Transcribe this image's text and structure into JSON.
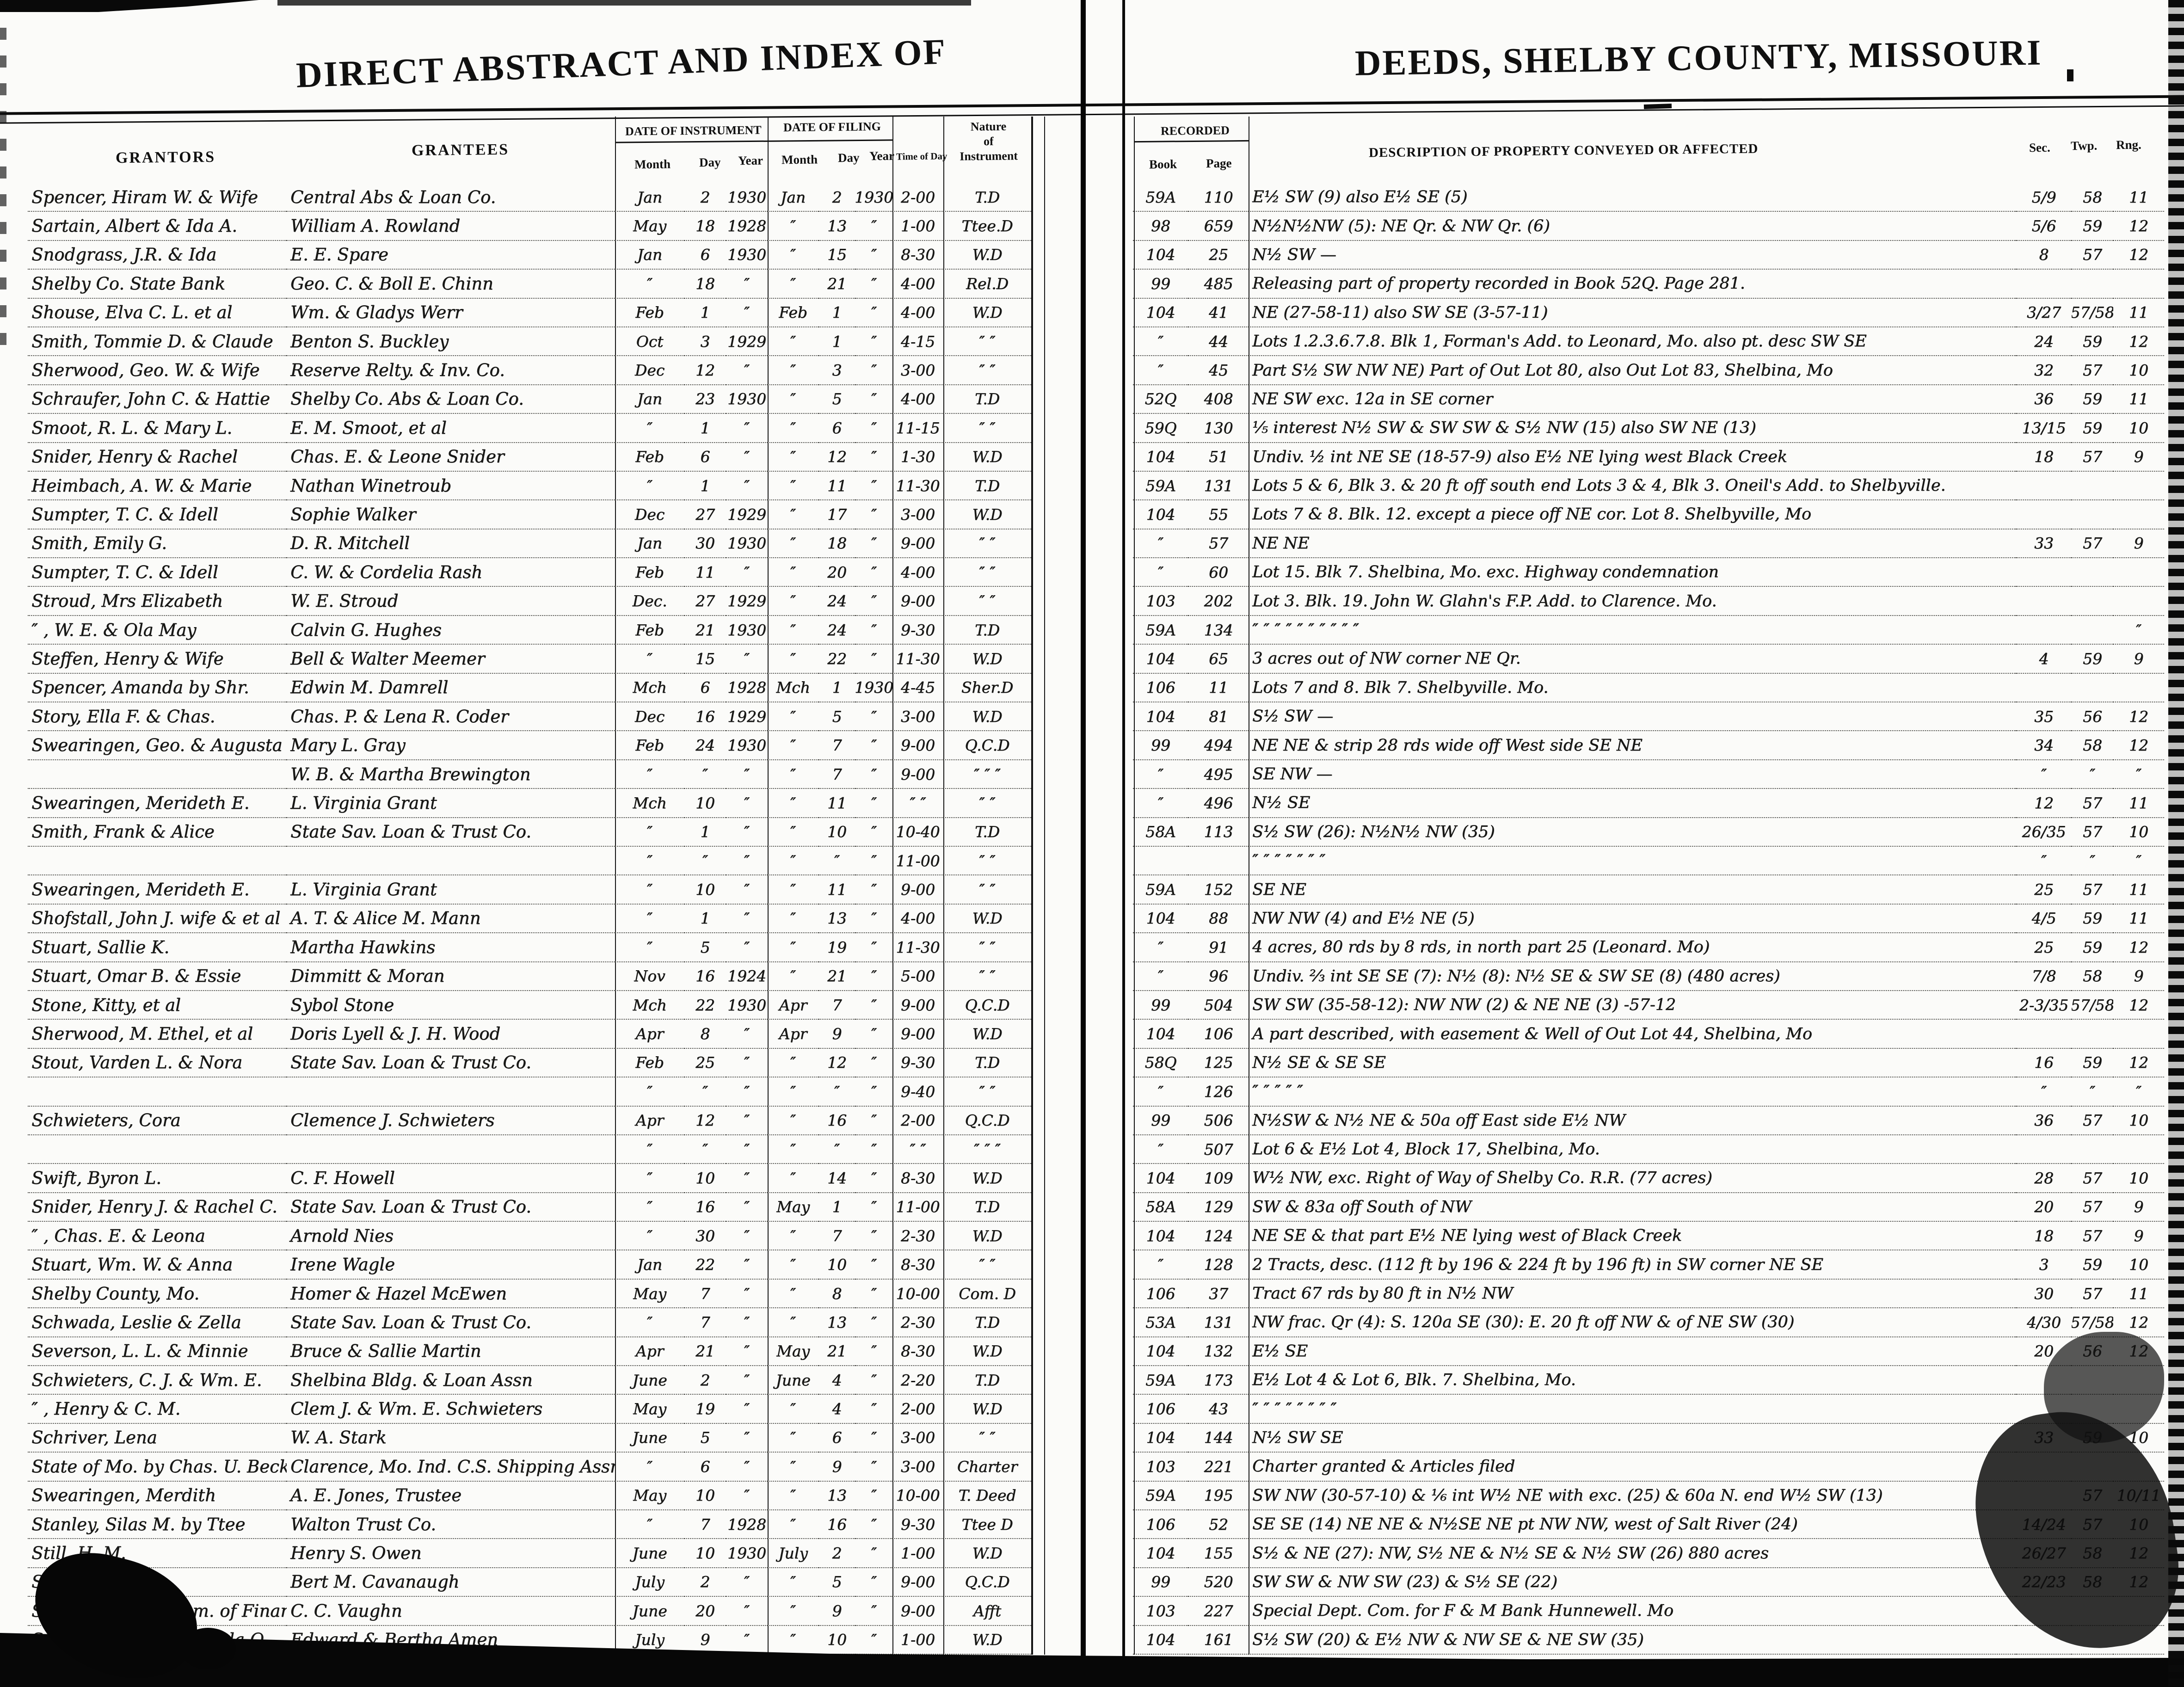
{
  "titles": {
    "left": "DIRECT ABSTRACT AND INDEX OF",
    "right": "DEEDS, SHELBY COUNTY, MISSOURI"
  },
  "headers": {
    "grantors": "GRANTORS",
    "grantees": "GRANTEES",
    "date_of_instrument": "DATE OF INSTRUMENT",
    "date_of_filing": "DATE OF FILING",
    "month": "Month",
    "day": "Day",
    "year": "Year",
    "time_of_day": "Time of Day",
    "nature_line1": "Nature",
    "nature_line2": "of",
    "nature_line3": "Instrument",
    "recorded": "RECORDED",
    "book": "Book",
    "page": "Page",
    "description": "DESCRIPTION OF PROPERTY CONVEYED OR AFFECTED",
    "sec": "Sec.",
    "twp": "Twp.",
    "rng": "Rng."
  },
  "rows": [
    {
      "g": "Spencer, Hiram W. & Wife",
      "e": "Central Abs & Loan Co.",
      "im": "Jan",
      "idy": "2",
      "iy": "1930",
      "fm": "Jan",
      "fd": "2",
      "fy": "1930",
      "t": "2-00",
      "n": "T.D",
      "bk": "59A",
      "pg": "110",
      "d": "E½ SW (9) also E½ SE (5)",
      "sec": "5/9",
      "twp": "58",
      "rng": "11"
    },
    {
      "g": "Sartain, Albert & Ida A.",
      "e": "William A. Rowland",
      "im": "May",
      "idy": "18",
      "iy": "1928",
      "fm": "″",
      "fd": "13",
      "fy": "″",
      "t": "1-00",
      "n": "Ttee.D",
      "bk": "98",
      "pg": "659",
      "d": "N½N½NW (5): NE Qr. & NW Qr. (6)",
      "sec": "5/6",
      "twp": "59",
      "rng": "12"
    },
    {
      "g": "Snodgrass, J.R. & Ida",
      "e": "E. E. Spare",
      "im": "Jan",
      "idy": "6",
      "iy": "1930",
      "fm": "″",
      "fd": "15",
      "fy": "″",
      "t": "8-30",
      "n": "W.D",
      "bk": "104",
      "pg": "25",
      "d": "N½ SW —",
      "sec": "8",
      "twp": "57",
      "rng": "12"
    },
    {
      "g": "Shelby Co. State Bank",
      "e": "Geo. C. & Boll E. Chinn",
      "im": "″",
      "idy": "18",
      "iy": "″",
      "fm": "″",
      "fd": "21",
      "fy": "″",
      "t": "4-00",
      "n": "Rel.D",
      "bk": "99",
      "pg": "485",
      "d": "Releasing part of property recorded in Book 52Q. Page 281.",
      "sec": "",
      "twp": "",
      "rng": ""
    },
    {
      "g": "Shouse, Elva C. L. et al",
      "e": "Wm. & Gladys Werr",
      "im": "Feb",
      "idy": "1",
      "iy": "″",
      "fm": "Feb",
      "fd": "1",
      "fy": "″",
      "t": "4-00",
      "n": "W.D",
      "bk": "104",
      "pg": "41",
      "d": "NE (27-58-11) also SW SE (3-57-11)",
      "sec": "3/27",
      "twp": "57/58",
      "rng": "11"
    },
    {
      "g": "Smith, Tommie D. & Claude",
      "e": "Benton S. Buckley",
      "im": "Oct",
      "idy": "3",
      "iy": "1929",
      "fm": "″",
      "fd": "1",
      "fy": "″",
      "t": "4-15",
      "n": "″ ″",
      "bk": "″",
      "pg": "44",
      "d": "Lots 1.2.3.6.7.8. Blk 1, Forman's Add. to Leonard, Mo. also pt. desc SW SE",
      "sec": "24",
      "twp": "59",
      "rng": "12"
    },
    {
      "g": "Sherwood, Geo. W. & Wife",
      "e": "Reserve Relty. & Inv. Co.",
      "im": "Dec",
      "idy": "12",
      "iy": "″",
      "fm": "″",
      "fd": "3",
      "fy": "″",
      "t": "3-00",
      "n": "″ ″",
      "bk": "″",
      "pg": "45",
      "d": "Part S½ SW NW NE) Part of Out Lot 80, also Out Lot 83, Shelbina, Mo",
      "sec": "32",
      "twp": "57",
      "rng": "10"
    },
    {
      "g": "Schraufer, John C. & Hattie",
      "e": "Shelby Co. Abs & Loan Co.",
      "im": "Jan",
      "idy": "23",
      "iy": "1930",
      "fm": "″",
      "fd": "5",
      "fy": "″",
      "t": "4-00",
      "n": "T.D",
      "bk": "52Q",
      "pg": "408",
      "d": "NE SW exc. 12a in SE corner",
      "sec": "36",
      "twp": "59",
      "rng": "11"
    },
    {
      "g": "Smoot, R. L. & Mary L.",
      "e": "E. M. Smoot, et al",
      "im": "″",
      "idy": "1",
      "iy": "″",
      "fm": "″",
      "fd": "6",
      "fy": "″",
      "t": "11-15",
      "n": "″ ″",
      "bk": "59Q",
      "pg": "130",
      "d": "⅕ interest N½ SW & SW SW & S½ NW (15) also SW NE (13)",
      "sec": "13/15",
      "twp": "59",
      "rng": "10"
    },
    {
      "g": "Snider, Henry & Rachel",
      "e": "Chas. E. & Leone Snider",
      "im": "Feb",
      "idy": "6",
      "iy": "″",
      "fm": "″",
      "fd": "12",
      "fy": "″",
      "t": "1-30",
      "n": "W.D",
      "bk": "104",
      "pg": "51",
      "d": "Undiv. ½ int NE SE (18-57-9) also E½ NE lying west Black Creek",
      "sec": "18",
      "twp": "57",
      "rng": "9"
    },
    {
      "g": "Heimbach, A. W. & Marie",
      "e": "Nathan Winetroub",
      "im": "″",
      "idy": "1",
      "iy": "″",
      "fm": "″",
      "fd": "11",
      "fy": "″",
      "t": "11-30",
      "n": "T.D",
      "bk": "59A",
      "pg": "131",
      "d": "Lots 5 & 6, Blk 3. & 20 ft off south end Lots 3 & 4, Blk 3. Oneil's Add. to Shelbyville.",
      "sec": "",
      "twp": "",
      "rng": ""
    },
    {
      "g": "Sumpter, T. C. & Idell",
      "e": "Sophie Walker",
      "im": "Dec",
      "idy": "27",
      "iy": "1929",
      "fm": "″",
      "fd": "17",
      "fy": "″",
      "t": "3-00",
      "n": "W.D",
      "bk": "104",
      "pg": "55",
      "d": "Lots 7 & 8. Blk. 12. except a piece off NE cor. Lot 8. Shelbyville, Mo",
      "sec": "",
      "twp": "",
      "rng": ""
    },
    {
      "g": "Smith, Emily G.",
      "e": "D. R. Mitchell",
      "im": "Jan",
      "idy": "30",
      "iy": "1930",
      "fm": "″",
      "fd": "18",
      "fy": "″",
      "t": "9-00",
      "n": "″ ″",
      "bk": "″",
      "pg": "57",
      "d": "NE NE",
      "sec": "33",
      "twp": "57",
      "rng": "9"
    },
    {
      "g": "Sumpter, T. C. & Idell",
      "e": "C. W. & Cordelia Rash",
      "im": "Feb",
      "idy": "11",
      "iy": "″",
      "fm": "″",
      "fd": "20",
      "fy": "″",
      "t": "4-00",
      "n": "″ ″",
      "bk": "″",
      "pg": "60",
      "d": "Lot 15. Blk 7. Shelbina, Mo. exc. Highway condemnation",
      "sec": "",
      "twp": "",
      "rng": ""
    },
    {
      "g": "Stroud, Mrs Elizabeth",
      "e": "W. E. Stroud",
      "im": "Dec.",
      "idy": "27",
      "iy": "1929",
      "fm": "″",
      "fd": "24",
      "fy": "″",
      "t": "9-00",
      "n": "″ ″",
      "bk": "103",
      "pg": "202",
      "d": "Lot 3. Blk. 19. John W. Glahn's F.P. Add. to Clarence. Mo.",
      "sec": "",
      "twp": "",
      "rng": ""
    },
    {
      "g": "″ , W. E. & Ola May",
      "e": "Calvin G. Hughes",
      "im": "Feb",
      "idy": "21",
      "iy": "1930",
      "fm": "″",
      "fd": "24",
      "fy": "″",
      "t": "9-30",
      "n": "T.D",
      "bk": "59A",
      "pg": "134",
      "d": "″   ″   ″   ″   ″   ″   ″   ″   ″   ″",
      "sec": "",
      "twp": "",
      "rng": "″"
    },
    {
      "g": "Steffen, Henry & Wife",
      "e": "Bell & Walter Meemer",
      "im": "″",
      "idy": "15",
      "iy": "″",
      "fm": "″",
      "fd": "22",
      "fy": "″",
      "t": "11-30",
      "n": "W.D",
      "bk": "104",
      "pg": "65",
      "d": "3 acres out of NW corner NE Qr.",
      "sec": "4",
      "twp": "59",
      "rng": "9"
    },
    {
      "g": "Spencer, Amanda by Shr.",
      "e": "Edwin M. Damrell",
      "im": "Mch",
      "idy": "6",
      "iy": "1928",
      "fm": "Mch",
      "fd": "1",
      "fy": "1930",
      "t": "4-45",
      "n": "Sher.D",
      "bk": "106",
      "pg": "11",
      "d": "Lots 7 and 8. Blk 7. Shelbyville. Mo.",
      "sec": "",
      "twp": "",
      "rng": ""
    },
    {
      "g": "Story, Ella F. & Chas.",
      "e": "Chas. P. & Lena R. Coder",
      "im": "Dec",
      "idy": "16",
      "iy": "1929",
      "fm": "″",
      "fd": "5",
      "fy": "″",
      "t": "3-00",
      "n": "W.D",
      "bk": "104",
      "pg": "81",
      "d": "S½ SW —",
      "sec": "35",
      "twp": "56",
      "rng": "12"
    },
    {
      "g": "Swearingen, Geo. & Augusta",
      "e": "Mary L. Gray",
      "im": "Feb",
      "idy": "24",
      "iy": "1930",
      "fm": "″",
      "fd": "7",
      "fy": "″",
      "t": "9-00",
      "n": "Q.C.D",
      "bk": "99",
      "pg": "494",
      "d": "NE NE & strip 28 rds wide off West side SE NE",
      "sec": "34",
      "twp": "58",
      "rng": "12"
    },
    {
      "g": "",
      "e": "W. B. & Martha Brewington",
      "im": "″",
      "idy": "″",
      "iy": "″",
      "fm": "″",
      "fd": "7",
      "fy": "″",
      "t": "9-00",
      "n": "″ ″ ″",
      "bk": "″",
      "pg": "495",
      "d": "SE NW —",
      "sec": "″",
      "twp": "″",
      "rng": "″"
    },
    {
      "g": "Swearingen, Merideth E.",
      "e": "L. Virginia Grant",
      "im": "Mch",
      "idy": "10",
      "iy": "″",
      "fm": "″",
      "fd": "11",
      "fy": "″",
      "t": "″ ″",
      "n": "″ ″",
      "bk": "″",
      "pg": "496",
      "d": "N½ SE",
      "sec": "12",
      "twp": "57",
      "rng": "11"
    },
    {
      "g": "Smith, Frank & Alice",
      "e": "State Sav. Loan & Trust Co.",
      "im": "″",
      "idy": "1",
      "iy": "″",
      "fm": "″",
      "fd": "10",
      "fy": "″",
      "t": "10-40",
      "n": "T.D",
      "bk": "58A",
      "pg": "113",
      "d": "S½ SW (26):  N½N½ NW (35)",
      "sec": "26/35",
      "twp": "57",
      "rng": "10"
    },
    {
      "g": "",
      "e": "",
      "im": "″",
      "idy": "″",
      "iy": "″",
      "fm": "″",
      "fd": "″",
      "fy": "″",
      "t": "11-00",
      "n": "″ ″",
      "bk": "",
      "pg": "",
      "d": "″   ″   ″   ″   ″   ″   ″",
      "sec": "″",
      "twp": "″",
      "rng": "″"
    },
    {
      "g": "Swearingen, Merideth E.",
      "e": "L. Virginia Grant",
      "im": "″",
      "idy": "10",
      "iy": "″",
      "fm": "″",
      "fd": "11",
      "fy": "″",
      "t": "9-00",
      "n": "″ ″",
      "bk": "59A",
      "pg": "152",
      "d": "SE NE",
      "sec": "25",
      "twp": "57",
      "rng": "11"
    },
    {
      "g": "Shofstall, John J. wife & et al",
      "e": "A. T. & Alice M. Mann",
      "im": "″",
      "idy": "1",
      "iy": "″",
      "fm": "″",
      "fd": "13",
      "fy": "″",
      "t": "4-00",
      "n": "W.D",
      "bk": "104",
      "pg": "88",
      "d": "NW NW (4) and E½ NE (5)",
      "sec": "4/5",
      "twp": "59",
      "rng": "11"
    },
    {
      "g": "Stuart, Sallie K.",
      "e": "Martha Hawkins",
      "im": "″",
      "idy": "5",
      "iy": "″",
      "fm": "″",
      "fd": "19",
      "fy": "″",
      "t": "11-30",
      "n": "″ ″",
      "bk": "″",
      "pg": "91",
      "d": "4 acres, 80 rds by 8 rds, in north part 25   (Leonard. Mo)",
      "sec": "25",
      "twp": "59",
      "rng": "12"
    },
    {
      "g": "Stuart, Omar B. & Essie",
      "e": "Dimmitt & Moran",
      "im": "Nov",
      "idy": "16",
      "iy": "1924",
      "fm": "″",
      "fd": "21",
      "fy": "″",
      "t": "5-00",
      "n": "″ ″",
      "bk": "″",
      "pg": "96",
      "d": "Undiv. ⅔ int SE SE (7): N½ (8): N½ SE & SW SE (8)   (480 acres)",
      "sec": "7/8",
      "twp": "58",
      "rng": "9"
    },
    {
      "g": "Stone, Kitty, et al",
      "e": "Sybol Stone",
      "im": "Mch",
      "idy": "22",
      "iy": "1930",
      "fm": "Apr",
      "fd": "7",
      "fy": "″",
      "t": "9-00",
      "n": "Q.C.D",
      "bk": "99",
      "pg": "504",
      "d": "SW SW (35-58-12):  NW NW (2) & NE NE (3) -57-12",
      "sec": "2-3/35",
      "twp": "57/58",
      "rng": "12"
    },
    {
      "g": "Sherwood, M. Ethel, et al",
      "e": "Doris Lyell & J. H. Wood",
      "im": "Apr",
      "idy": "8",
      "iy": "″",
      "fm": "Apr",
      "fd": "9",
      "fy": "″",
      "t": "9-00",
      "n": "W.D",
      "bk": "104",
      "pg": "106",
      "d": "A part described, with easement & Well of Out Lot 44, Shelbina, Mo",
      "sec": "",
      "twp": "",
      "rng": ""
    },
    {
      "g": "Stout, Varden L. & Nora",
      "e": "State Sav. Loan & Trust Co.",
      "im": "Feb",
      "idy": "25",
      "iy": "″",
      "fm": "″",
      "fd": "12",
      "fy": "″",
      "t": "9-30",
      "n": "T.D",
      "bk": "58Q",
      "pg": "125",
      "d": "N½ SE  &  SE SE",
      "sec": "16",
      "twp": "59",
      "rng": "12"
    },
    {
      "g": "",
      "e": "",
      "im": "″",
      "idy": "″",
      "iy": "″",
      "fm": "″",
      "fd": "″",
      "fy": "″",
      "t": "9-40",
      "n": "″ ″",
      "bk": "″",
      "pg": "126",
      "d": "″   ″   ″   ″   ″",
      "sec": "″",
      "twp": "″",
      "rng": "″"
    },
    {
      "g": "Schwieters, Cora",
      "e": "Clemence J. Schwieters",
      "im": "Apr",
      "idy": "12",
      "iy": "″",
      "fm": "″",
      "fd": "16",
      "fy": "″",
      "t": "2-00",
      "n": "Q.C.D",
      "bk": "99",
      "pg": "506",
      "d": "N½SW & N½ NE & 50a off East side E½ NW",
      "sec": "36",
      "twp": "57",
      "rng": "10"
    },
    {
      "g": "",
      "e": "",
      "im": "″",
      "idy": "″",
      "iy": "″",
      "fm": "″",
      "fd": "″",
      "fy": "″",
      "t": "″ ″",
      "n": "″ ″ ″",
      "bk": "″",
      "pg": "507",
      "d": "Lot 6 & E½ Lot 4, Block 17, Shelbina, Mo.",
      "sec": "",
      "twp": "",
      "rng": ""
    },
    {
      "g": "Swift, Byron L.",
      "e": "C. F. Howell",
      "im": "″",
      "idy": "10",
      "iy": "″",
      "fm": "″",
      "fd": "14",
      "fy": "″",
      "t": "8-30",
      "n": "W.D",
      "bk": "104",
      "pg": "109",
      "d": "W½ NW, exc. Right of Way of Shelby Co. R.R.   (77 acres)",
      "sec": "28",
      "twp": "57",
      "rng": "10"
    },
    {
      "g": "Snider, Henry J. & Rachel C.",
      "e": "State Sav. Loan & Trust Co.",
      "im": "″",
      "idy": "16",
      "iy": "″",
      "fm": "May",
      "fd": "1",
      "fy": "″",
      "t": "11-00",
      "n": "T.D",
      "bk": "58A",
      "pg": "129",
      "d": "SW & 83a off South of NW",
      "sec": "20",
      "twp": "57",
      "rng": "9"
    },
    {
      "g": "″ , Chas. E. & Leona",
      "e": "Arnold Nies",
      "im": "″",
      "idy": "30",
      "iy": "″",
      "fm": "″",
      "fd": "7",
      "fy": "″",
      "t": "2-30",
      "n": "W.D",
      "bk": "104",
      "pg": "124",
      "d": "NE SE & that part E½ NE lying west of Black Creek",
      "sec": "18",
      "twp": "57",
      "rng": "9"
    },
    {
      "g": "Stuart, Wm. W. & Anna",
      "e": "Irene Wagle",
      "im": "Jan",
      "idy": "22",
      "iy": "″",
      "fm": "″",
      "fd": "10",
      "fy": "″",
      "t": "8-30",
      "n": "″ ″",
      "bk": "″",
      "pg": "128",
      "d": "2 Tracts, desc. (112 ft by 196 & 224 ft by 196 ft) in SW corner NE SE",
      "sec": "3",
      "twp": "59",
      "rng": "10"
    },
    {
      "g": "Shelby County, Mo.",
      "e": "Homer & Hazel McEwen",
      "im": "May",
      "idy": "7",
      "iy": "″",
      "fm": "″",
      "fd": "8",
      "fy": "″",
      "t": "10-00",
      "n": "Com. D",
      "bk": "106",
      "pg": "37",
      "d": "Tract 67 rds by 80 ft in N½ NW",
      "sec": "30",
      "twp": "57",
      "rng": "11"
    },
    {
      "g": "Schwada, Leslie & Zella",
      "e": "State Sav. Loan & Trust Co.",
      "im": "″",
      "idy": "7",
      "iy": "″",
      "fm": "″",
      "fd": "13",
      "fy": "″",
      "t": "2-30",
      "n": "T.D",
      "bk": "53A",
      "pg": "131",
      "d": "NW frac. Qr (4): S. 120a SE (30): E. 20 ft off NW & of NE SW (30)",
      "sec": "4/30",
      "twp": "57/58",
      "rng": "12"
    },
    {
      "g": "Severson, L. L. & Minnie",
      "e": "Bruce & Sallie Martin",
      "im": "Apr",
      "idy": "21",
      "iy": "″",
      "fm": "May",
      "fd": "21",
      "fy": "″",
      "t": "8-30",
      "n": "W.D",
      "bk": "104",
      "pg": "132",
      "d": "E½ SE",
      "sec": "20",
      "twp": "56",
      "rng": "12"
    },
    {
      "g": "Schwieters, C. J. & Wm. E.",
      "e": "Shelbina Bldg. & Loan Assn",
      "im": "June",
      "idy": "2",
      "iy": "″",
      "fm": "June",
      "fd": "4",
      "fy": "″",
      "t": "2-20",
      "n": "T.D",
      "bk": "59A",
      "pg": "173",
      "d": "E½ Lot 4 & Lot 6, Blk. 7.  Shelbina, Mo.",
      "sec": "",
      "twp": "",
      "rng": ""
    },
    {
      "g": "″ , Henry & C. M.",
      "e": "Clem J. & Wm. E. Schwieters",
      "im": "May",
      "idy": "19",
      "iy": "″",
      "fm": "″",
      "fd": "4",
      "fy": "″",
      "t": "2-00",
      "n": "W.D",
      "bk": "106",
      "pg": "43",
      "d": "″   ″   ″   ″   ″   ″   ″   ″",
      "sec": "",
      "twp": "",
      "rng": ""
    },
    {
      "g": "Schriver, Lena",
      "e": "W. A. Stark",
      "im": "June",
      "idy": "5",
      "iy": "″",
      "fm": "″",
      "fd": "6",
      "fy": "″",
      "t": "3-00",
      "n": "″ ″",
      "bk": "104",
      "pg": "144",
      "d": "N½ SW SE",
      "sec": "33",
      "twp": "59",
      "rng": "10"
    },
    {
      "g": "State of Mo. by Chas. U. Becker",
      "e": "Clarence, Mo. Ind. C.S. Shipping Assn",
      "im": "″",
      "idy": "6",
      "iy": "″",
      "fm": "″",
      "fd": "9",
      "fy": "″",
      "t": "3-00",
      "n": "Charter",
      "bk": "103",
      "pg": "221",
      "d": "Charter granted & Articles filed",
      "sec": "",
      "twp": "",
      "rng": ""
    },
    {
      "g": "Swearingen, Merdith",
      "e": "A. E. Jones, Trustee",
      "im": "May",
      "idy": "10",
      "iy": "″",
      "fm": "″",
      "fd": "13",
      "fy": "″",
      "t": "10-00",
      "n": "T. Deed",
      "bk": "59A",
      "pg": "195",
      "d": "SW NW (30-57-10) & ⅙ int W½ NE with exc. (25) & 60a N. end W½ SW (13)",
      "sec": "",
      "twp": "57",
      "rng": "10/11"
    },
    {
      "g": "Stanley, Silas M. by Ttee",
      "e": "Walton Trust Co.",
      "im": "″",
      "idy": "7",
      "iy": "1928",
      "fm": "″",
      "fd": "16",
      "fy": "″",
      "t": "9-30",
      "n": "Ttee D",
      "bk": "106",
      "pg": "52",
      "d": "SE SE (14) NE NE & N½SE NE pt NW NW, west of Salt River (24)",
      "sec": "14/24",
      "twp": "57",
      "rng": "10"
    },
    {
      "g": "Still, H. M.",
      "e": "Henry S. Owen",
      "im": "June",
      "idy": "10",
      "iy": "1930",
      "fm": "July",
      "fd": "2",
      "fy": "″",
      "t": "1-00",
      "n": "W.D",
      "bk": "104",
      "pg": "155",
      "d": "S½ & NE (27): NW, S½ NE & N½ SE & N½ SW (26)    880 acres",
      "sec": "26/27",
      "twp": "58",
      "rng": "12"
    },
    {
      "g": "Siebenborn, Lu",
      "e": "Bert M. Cavanaugh",
      "im": "July",
      "idy": "2",
      "iy": "″",
      "fm": "″",
      "fd": "5",
      "fy": "″",
      "t": "9-00",
      "n": "Q.C.D",
      "bk": "99",
      "pg": "520",
      "d": "SW SW & NW SW (23) & S½ SE (22)",
      "sec": "22/23",
      "twp": "58",
      "rng": "12"
    },
    {
      "g": "State of Mo. by Com. of Finance",
      "e": "C. C. Vaughn",
      "im": "June",
      "idy": "20",
      "iy": "″",
      "fm": "″",
      "fd": "9",
      "fy": "″",
      "t": "9-00",
      "n": "Afft",
      "bk": "103",
      "pg": "227",
      "d": "Special Dept. Com. for F & M Bank Hunnewell. Mo",
      "sec": "",
      "twp": "",
      "rng": ""
    },
    {
      "g": "S———, Frank E. & Lula O.",
      "e": "Edward & Bertha Amen",
      "im": "July",
      "idy": "9",
      "iy": "″",
      "fm": "″",
      "fd": "10",
      "fy": "″",
      "t": "1-00",
      "n": "W.D",
      "bk": "104",
      "pg": "161",
      "d": "S½ SW (20) & E½ NW & NW SE & NE SW (35)",
      "sec": "",
      "twp": "",
      "rng": ""
    }
  ]
}
